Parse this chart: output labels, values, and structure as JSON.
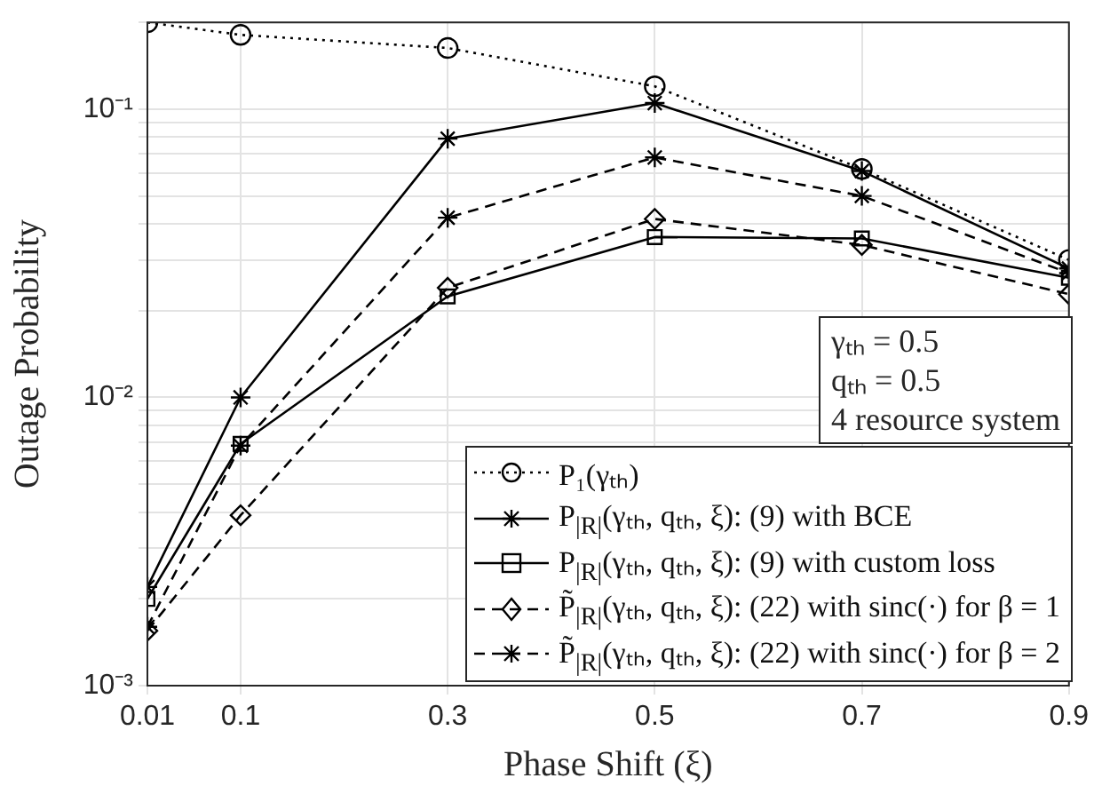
{
  "chart_data": {
    "type": "line",
    "xlabel": "Phase Shift (ξ)",
    "ylabel": "Outage Probability",
    "log": "y",
    "grid": true,
    "legend": "bottom right",
    "x": [
      0.01,
      0.1,
      0.3,
      0.5,
      0.7,
      0.9
    ],
    "xlim": [
      0.01,
      0.9
    ],
    "xticks": [
      0.01,
      0.1,
      0.3,
      0.5,
      0.7,
      0.9
    ],
    "ylim": [
      0.001,
      0.2
    ],
    "yticks": [
      {
        "value": 0.001,
        "label": "10⁻³"
      },
      {
        "value": 0.002,
        "label": null
      },
      {
        "value": 0.003,
        "label": null
      },
      {
        "value": 0.004,
        "label": null
      },
      {
        "value": 0.005,
        "label": null
      },
      {
        "value": 0.006,
        "label": null
      },
      {
        "value": 0.007,
        "label": null
      },
      {
        "value": 0.008,
        "label": null
      },
      {
        "value": 0.009,
        "label": null
      },
      {
        "value": 0.01,
        "label": "10⁻²"
      },
      {
        "value": 0.02,
        "label": null
      },
      {
        "value": 0.03,
        "label": null
      },
      {
        "value": 0.04,
        "label": null
      },
      {
        "value": 0.05,
        "label": null
      },
      {
        "value": 0.06,
        "label": null
      },
      {
        "value": 0.07,
        "label": null
      },
      {
        "value": 0.08,
        "label": null
      },
      {
        "value": 0.09,
        "label": null
      },
      {
        "value": 0.1,
        "label": "10⁻¹"
      },
      {
        "value": 0.2,
        "label": null
      }
    ],
    "annotations": [
      "γₜₕ = 0.5",
      "qₜₕ = 0.5",
      "4 resource system"
    ],
    "series": [
      {
        "name": "P₁(γₜₕ)",
        "color": "#000000",
        "marker": "circle",
        "line_style": "dotted",
        "values": [
          0.2,
          0.181,
          0.163,
          0.12,
          0.062,
          0.03
        ]
      },
      {
        "name": "P$_{|R|}$(γₜₕ, qₜₕ, ξ): (9) with BCE",
        "color": "#000000",
        "marker": "cross",
        "line_style": "solid",
        "values": [
          0.0022,
          0.01,
          0.079,
          0.105,
          0.061,
          0.028
        ]
      },
      {
        "name": "P$_{|R|}$(γₜₕ, qₜₕ, ξ): (9) with custom loss",
        "color": "#000000",
        "marker": "square",
        "line_style": "solid",
        "values": [
          0.002,
          0.0069,
          0.0224,
          0.036,
          0.0356,
          0.026
        ]
      },
      {
        "name": "P̃$_{|R|}$(γₜₕ, qₜₕ, ξ): (22) with sinc(·) for β = 1",
        "color": "#000000",
        "marker": "diamond",
        "line_style": "dashed",
        "values": [
          0.00155,
          0.0039,
          0.024,
          0.0416,
          0.0338,
          0.0228
        ]
      },
      {
        "name": "P̃$_{|R|}$(γₜₕ, qₜₕ, ξ): (22) with sinc(·) for β = 2",
        "color": "#000000",
        "marker": "cross",
        "line_style": "dashed",
        "values": [
          0.0016,
          0.0068,
          0.042,
          0.068,
          0.05,
          0.027
        ]
      }
    ]
  }
}
